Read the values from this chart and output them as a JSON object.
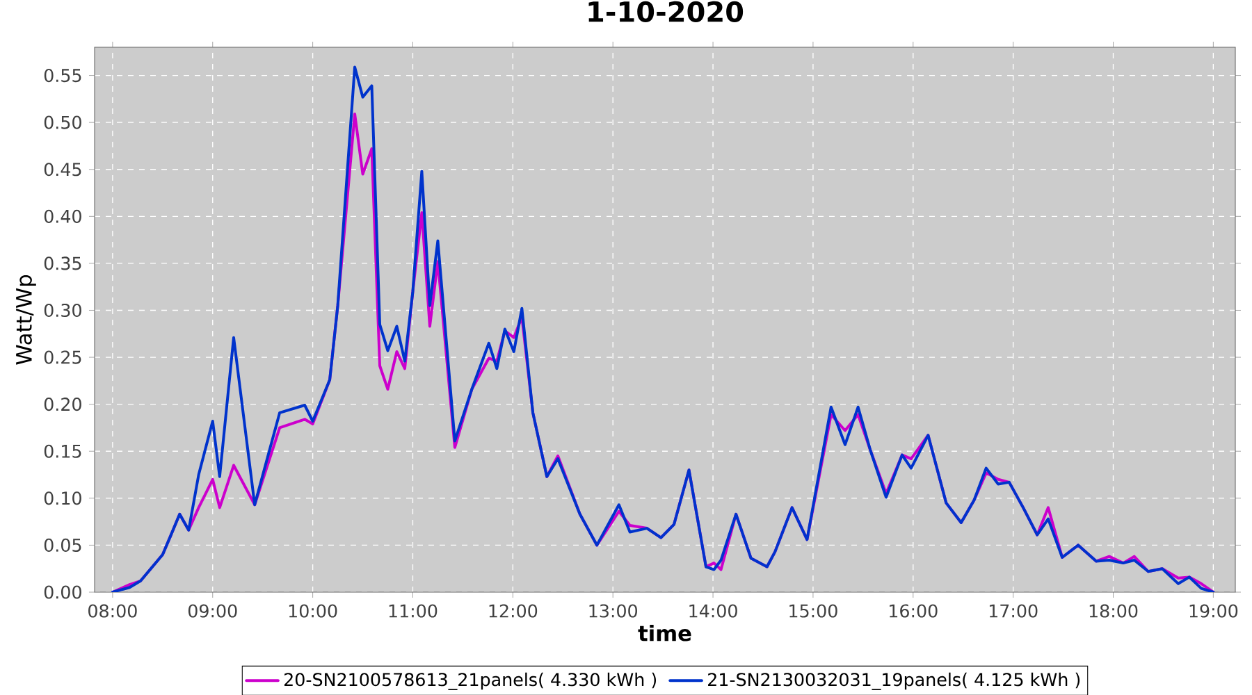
{
  "chart_data": {
    "type": "line",
    "title": "1-10-2020",
    "xlabel": "time",
    "ylabel": "Watt/Wp",
    "x": [
      8.0,
      8.17,
      8.28,
      8.5,
      8.58,
      8.67,
      8.76,
      8.86,
      9.0,
      9.07,
      9.21,
      9.42,
      9.67,
      9.92,
      10.0,
      10.17,
      10.25,
      10.42,
      10.5,
      10.59,
      10.67,
      10.75,
      10.84,
      10.92,
      11.0,
      11.09,
      11.17,
      11.25,
      11.42,
      11.59,
      11.76,
      11.84,
      11.92,
      12.01,
      12.09,
      12.2,
      12.34,
      12.45,
      12.67,
      12.84,
      13.06,
      13.17,
      13.34,
      13.48,
      13.61,
      13.76,
      13.93,
      14.01,
      14.08,
      14.23,
      14.38,
      14.54,
      14.62,
      14.79,
      14.94,
      15.18,
      15.32,
      15.45,
      15.57,
      15.73,
      15.89,
      15.98,
      16.15,
      16.33,
      16.48,
      16.61,
      16.73,
      16.85,
      16.96,
      17.1,
      17.24,
      17.35,
      17.49,
      17.65,
      17.83,
      17.96,
      18.1,
      18.21,
      18.35,
      18.49,
      18.65,
      18.76,
      18.88,
      19.0
    ],
    "series": [
      {
        "name": "20-SN2100578613_21panels( 4.330 kWh )",
        "color": "#cc00cc",
        "values": [
          0,
          0.008,
          0.012,
          0.04,
          0.06,
          0.083,
          0.066,
          0.09,
          0.12,
          0.09,
          0.135,
          0.093,
          0.175,
          0.184,
          0.179,
          0.226,
          0.305,
          0.509,
          0.445,
          0.472,
          0.241,
          0.216,
          0.256,
          0.238,
          0.32,
          0.404,
          0.283,
          0.352,
          0.154,
          0.216,
          0.249,
          0.246,
          0.278,
          0.271,
          0.293,
          0.191,
          0.123,
          0.145,
          0.083,
          0.05,
          0.086,
          0.071,
          0.068,
          0.058,
          0.072,
          0.13,
          0.027,
          0.031,
          0.024,
          0.083,
          0.036,
          0.027,
          0.043,
          0.09,
          0.056,
          0.189,
          0.172,
          0.189,
          0.152,
          0.105,
          0.146,
          0.142,
          0.167,
          0.095,
          0.074,
          0.098,
          0.127,
          0.12,
          0.117,
          0.09,
          0.061,
          0.09,
          0.037,
          0.05,
          0.033,
          0.038,
          0.031,
          0.038,
          0.022,
          0.025,
          0.015,
          0.016,
          0.009,
          0
        ]
      },
      {
        "name": "21-SN2130032031_19panels( 4.125 kWh )",
        "color": "#0033cc",
        "values": [
          0,
          0.005,
          0.012,
          0.04,
          0.06,
          0.083,
          0.066,
          0.125,
          0.182,
          0.123,
          0.271,
          0.093,
          0.191,
          0.199,
          0.182,
          0.226,
          0.305,
          0.559,
          0.527,
          0.539,
          0.285,
          0.257,
          0.283,
          0.246,
          0.32,
          0.448,
          0.305,
          0.374,
          0.161,
          0.216,
          0.265,
          0.238,
          0.28,
          0.256,
          0.302,
          0.191,
          0.123,
          0.142,
          0.083,
          0.05,
          0.093,
          0.064,
          0.068,
          0.058,
          0.072,
          0.13,
          0.027,
          0.024,
          0.034,
          0.083,
          0.036,
          0.027,
          0.043,
          0.09,
          0.056,
          0.197,
          0.157,
          0.197,
          0.152,
          0.101,
          0.146,
          0.132,
          0.167,
          0.095,
          0.074,
          0.098,
          0.132,
          0.115,
          0.117,
          0.09,
          0.061,
          0.078,
          0.037,
          0.05,
          0.033,
          0.034,
          0.031,
          0.034,
          0.022,
          0.025,
          0.009,
          0.016,
          0.004,
          0
        ]
      }
    ],
    "xlim": [
      7.82,
      19.22
    ],
    "xticks": [
      {
        "value": 8,
        "label": "08:00"
      },
      {
        "value": 9,
        "label": "09:00"
      },
      {
        "value": 10,
        "label": "10:00"
      },
      {
        "value": 11,
        "label": "11:00"
      },
      {
        "value": 12,
        "label": "12:00"
      },
      {
        "value": 13,
        "label": "13:00"
      },
      {
        "value": 14,
        "label": "14:00"
      },
      {
        "value": 15,
        "label": "15:00"
      },
      {
        "value": 16,
        "label": "16:00"
      },
      {
        "value": 17,
        "label": "17:00"
      },
      {
        "value": 18,
        "label": "18:00"
      },
      {
        "value": 19,
        "label": "19:00"
      }
    ],
    "ylim": [
      0,
      0.58
    ],
    "yticks": [
      {
        "value": 0,
        "label": "0.00"
      },
      {
        "value": 0.05,
        "label": "0.05"
      },
      {
        "value": 0.1,
        "label": "0.10"
      },
      {
        "value": 0.15,
        "label": "0.15"
      },
      {
        "value": 0.2,
        "label": "0.20"
      },
      {
        "value": 0.25,
        "label": "0.25"
      },
      {
        "value": 0.3,
        "label": "0.30"
      },
      {
        "value": 0.35,
        "label": "0.35"
      },
      {
        "value": 0.4,
        "label": "0.40"
      },
      {
        "value": 0.45,
        "label": "0.45"
      },
      {
        "value": 0.5,
        "label": "0.50"
      },
      {
        "value": 0.55,
        "label": "0.55"
      }
    ],
    "grid": true,
    "legend": "bottom",
    "marker": "none",
    "line_style": "solid"
  }
}
